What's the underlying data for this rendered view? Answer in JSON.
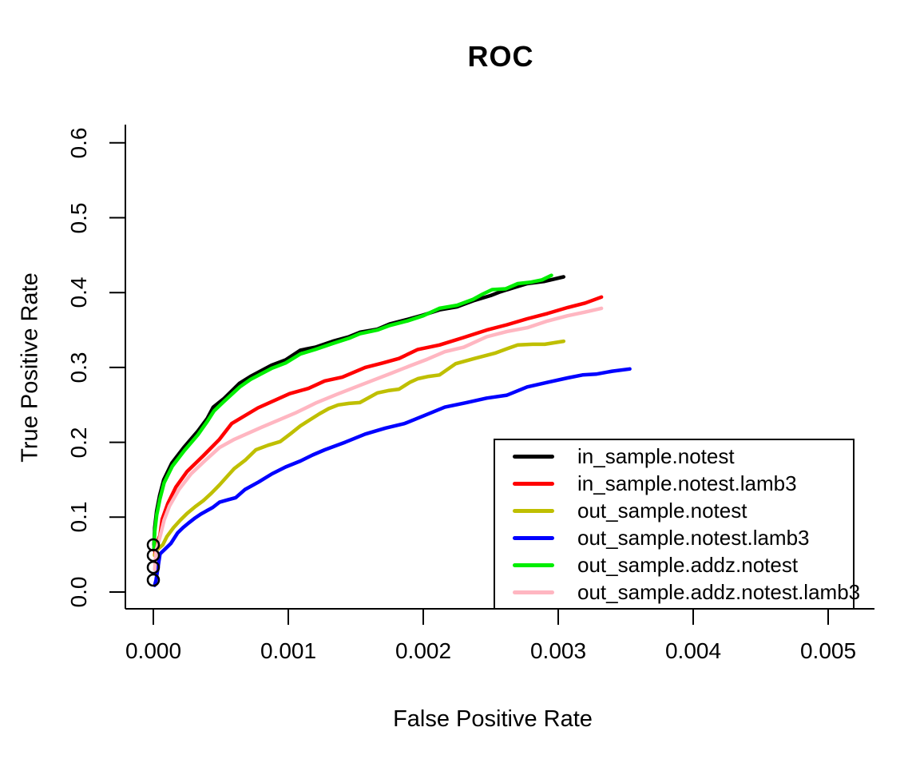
{
  "title": "ROC",
  "xlabel": "False Positive Rate",
  "ylabel": "True Positive Rate",
  "chart_data": {
    "type": "line",
    "title": "ROC",
    "xlabel": "False Positive Rate",
    "ylabel": "True Positive Rate",
    "xlim": [
      0,
      0.005
    ],
    "ylim": [
      0,
      0.6
    ],
    "grid": false,
    "legend_position": "bottom-right",
    "axis_color": "#000000",
    "x_ticks": {
      "values": [
        0,
        0.001,
        0.002,
        0.003,
        0.004,
        0.005
      ],
      "labels": [
        "0.000",
        "0.001",
        "0.002",
        "0.003",
        "0.004",
        "0.005"
      ]
    },
    "y_ticks": {
      "values": [
        0,
        0.1,
        0.2,
        0.3,
        0.4,
        0.5,
        0.6
      ],
      "labels": [
        "0.0",
        "0.1",
        "0.2",
        "0.3",
        "0.4",
        "0.5",
        "0.6"
      ]
    },
    "start_markers": {
      "x": 0,
      "y_values": [
        0.063,
        0.049,
        0.033,
        0.016
      ],
      "style": "open-circle",
      "color": "#000000"
    },
    "series": [
      {
        "name": "in_sample.notest",
        "color": "#000000",
        "points": [
          [
            5e-06,
            0.063
          ],
          [
            1e-05,
            0.086
          ],
          [
            2.4e-05,
            0.108
          ],
          [
            4.7e-05,
            0.129
          ],
          [
            7.7e-05,
            0.15
          ],
          [
            0.000136,
            0.172
          ],
          [
            0.000225,
            0.193
          ],
          [
            0.00033,
            0.215
          ],
          [
            0.0004,
            0.232
          ],
          [
            0.000444,
            0.247
          ],
          [
            0.00052,
            0.258
          ],
          [
            0.000639,
            0.279
          ],
          [
            0.00072,
            0.288
          ],
          [
            0.000876,
            0.303
          ],
          [
            0.00098,
            0.31
          ],
          [
            0.00109,
            0.323
          ],
          [
            0.0012,
            0.327
          ],
          [
            0.00133,
            0.335
          ],
          [
            0.00145,
            0.341
          ],
          [
            0.00153,
            0.347
          ],
          [
            0.00166,
            0.351
          ],
          [
            0.00175,
            0.358
          ],
          [
            0.00188,
            0.364
          ],
          [
            0.002,
            0.37
          ],
          [
            0.00212,
            0.377
          ],
          [
            0.00225,
            0.381
          ],
          [
            0.00237,
            0.389
          ],
          [
            0.0025,
            0.396
          ],
          [
            0.00257,
            0.401
          ],
          [
            0.00268,
            0.407
          ],
          [
            0.00277,
            0.412
          ],
          [
            0.0029,
            0.415
          ],
          [
            0.00304,
            0.421
          ]
        ]
      },
      {
        "name": "in_sample.notest.lamb3",
        "color": "#FF0000",
        "points": [
          [
            1e-05,
            0.049
          ],
          [
            2e-05,
            0.062
          ],
          [
            5e-05,
            0.076
          ],
          [
            6.5e-05,
            0.097
          ],
          [
            0.000107,
            0.118
          ],
          [
            0.000166,
            0.14
          ],
          [
            0.00025,
            0.161
          ],
          [
            0.00037,
            0.182
          ],
          [
            0.00049,
            0.204
          ],
          [
            0.00058,
            0.225
          ],
          [
            0.000775,
            0.246
          ],
          [
            0.00101,
            0.265
          ],
          [
            0.00115,
            0.272
          ],
          [
            0.00127,
            0.282
          ],
          [
            0.0014,
            0.287
          ],
          [
            0.00157,
            0.3
          ],
          [
            0.0017,
            0.306
          ],
          [
            0.00182,
            0.312
          ],
          [
            0.00196,
            0.324
          ],
          [
            0.00212,
            0.33
          ],
          [
            0.0023,
            0.34
          ],
          [
            0.00247,
            0.35
          ],
          [
            0.00262,
            0.357
          ],
          [
            0.00277,
            0.365
          ],
          [
            0.00292,
            0.372
          ],
          [
            0.00307,
            0.38
          ],
          [
            0.0032,
            0.386
          ],
          [
            0.00332,
            0.394
          ]
        ]
      },
      {
        "name": "out_sample.notest",
        "color": "#BFBF00",
        "points": [
          [
            1e-05,
            0.049
          ],
          [
            3e-05,
            0.057
          ],
          [
            7e-05,
            0.063
          ],
          [
            0.0001,
            0.074
          ],
          [
            0.00015,
            0.086
          ],
          [
            0.0002,
            0.096
          ],
          [
            0.00025,
            0.105
          ],
          [
            0.00031,
            0.114
          ],
          [
            0.00037,
            0.122
          ],
          [
            0.00043,
            0.132
          ],
          [
            0.00049,
            0.143
          ],
          [
            0.00055,
            0.155
          ],
          [
            0.0006,
            0.165
          ],
          [
            0.00068,
            0.176
          ],
          [
            0.00076,
            0.19
          ],
          [
            0.00085,
            0.196
          ],
          [
            0.00094,
            0.201
          ],
          [
            0.00102,
            0.212
          ],
          [
            0.00109,
            0.222
          ],
          [
            0.00116,
            0.23
          ],
          [
            0.00123,
            0.238
          ],
          [
            0.0013,
            0.245
          ],
          [
            0.00137,
            0.25
          ],
          [
            0.00145,
            0.252
          ],
          [
            0.00153,
            0.253
          ],
          [
            0.0016,
            0.26
          ],
          [
            0.00166,
            0.266
          ],
          [
            0.00174,
            0.269
          ],
          [
            0.00182,
            0.271
          ],
          [
            0.0019,
            0.28
          ],
          [
            0.00196,
            0.285
          ],
          [
            0.00204,
            0.288
          ],
          [
            0.00212,
            0.29
          ],
          [
            0.00224,
            0.305
          ],
          [
            0.00238,
            0.312
          ],
          [
            0.00253,
            0.319
          ],
          [
            0.00262,
            0.325
          ],
          [
            0.0027,
            0.33
          ],
          [
            0.00281,
            0.331
          ],
          [
            0.0029,
            0.331
          ],
          [
            0.00297,
            0.333
          ],
          [
            0.00304,
            0.335
          ]
        ]
      },
      {
        "name": "out_sample.notest.lamb3",
        "color": "#0000FF",
        "points": [
          [
            1e-05,
            0.009
          ],
          [
            2e-05,
            0.016
          ],
          [
            4e-05,
            0.04
          ],
          [
            5e-05,
            0.051
          ],
          [
            9e-05,
            0.058
          ],
          [
            0.00013,
            0.065
          ],
          [
            0.00018,
            0.079
          ],
          [
            0.00022,
            0.086
          ],
          [
            0.00026,
            0.092
          ],
          [
            0.00031,
            0.099
          ],
          [
            0.00035,
            0.104
          ],
          [
            0.0004,
            0.109
          ],
          [
            0.00044,
            0.113
          ],
          [
            0.00049,
            0.12
          ],
          [
            0.00055,
            0.123
          ],
          [
            0.00061,
            0.126
          ],
          [
            0.00068,
            0.137
          ],
          [
            0.00078,
            0.147
          ],
          [
            0.00088,
            0.158
          ],
          [
            0.00098,
            0.167
          ],
          [
            0.00109,
            0.175
          ],
          [
            0.00118,
            0.183
          ],
          [
            0.00127,
            0.19
          ],
          [
            0.00142,
            0.2
          ],
          [
            0.00157,
            0.211
          ],
          [
            0.00172,
            0.219
          ],
          [
            0.00186,
            0.225
          ],
          [
            0.00201,
            0.236
          ],
          [
            0.00216,
            0.247
          ],
          [
            0.00232,
            0.253
          ],
          [
            0.00247,
            0.259
          ],
          [
            0.00262,
            0.263
          ],
          [
            0.00277,
            0.274
          ],
          [
            0.00292,
            0.28
          ],
          [
            0.00307,
            0.286
          ],
          [
            0.00318,
            0.29
          ],
          [
            0.00328,
            0.291
          ],
          [
            0.0034,
            0.295
          ],
          [
            0.00353,
            0.298
          ]
        ]
      },
      {
        "name": "out_sample.addz.notest",
        "color": "#00EE00",
        "points": [
          [
            5e-06,
            0.058
          ],
          [
            1e-05,
            0.08
          ],
          [
            2.5e-05,
            0.103
          ],
          [
            5e-05,
            0.125
          ],
          [
            8e-05,
            0.146
          ],
          [
            0.00014,
            0.168
          ],
          [
            0.00023,
            0.189
          ],
          [
            0.00033,
            0.21
          ],
          [
            0.0004,
            0.228
          ],
          [
            0.00045,
            0.242
          ],
          [
            0.00052,
            0.254
          ],
          [
            0.00064,
            0.274
          ],
          [
            0.00072,
            0.284
          ],
          [
            0.00088,
            0.299
          ],
          [
            0.00098,
            0.306
          ],
          [
            0.00109,
            0.318
          ],
          [
            0.0012,
            0.324
          ],
          [
            0.00133,
            0.332
          ],
          [
            0.00145,
            0.339
          ],
          [
            0.00153,
            0.345
          ],
          [
            0.00166,
            0.35
          ],
          [
            0.00175,
            0.356
          ],
          [
            0.00188,
            0.362
          ],
          [
            0.002,
            0.369
          ],
          [
            0.00212,
            0.379
          ],
          [
            0.00225,
            0.383
          ],
          [
            0.00237,
            0.391
          ],
          [
            0.00244,
            0.398
          ],
          [
            0.00251,
            0.404
          ],
          [
            0.00261,
            0.405
          ],
          [
            0.0027,
            0.412
          ],
          [
            0.0028,
            0.414
          ],
          [
            0.00288,
            0.417
          ],
          [
            0.00295,
            0.423
          ]
        ]
      },
      {
        "name": "out_sample.addz.notest.lamb3",
        "color": "#FFB6C1",
        "points": [
          [
            1e-05,
            0.03
          ],
          [
            2e-05,
            0.055
          ],
          [
            5e-05,
            0.074
          ],
          [
            8e-05,
            0.096
          ],
          [
            0.00012,
            0.115
          ],
          [
            0.00019,
            0.137
          ],
          [
            0.00028,
            0.158
          ],
          [
            0.00038,
            0.175
          ],
          [
            0.00049,
            0.193
          ],
          [
            0.0006,
            0.204
          ],
          [
            0.0008,
            0.22
          ],
          [
            0.00105,
            0.239
          ],
          [
            0.00121,
            0.253
          ],
          [
            0.00136,
            0.264
          ],
          [
            0.0015,
            0.274
          ],
          [
            0.00163,
            0.283
          ],
          [
            0.00176,
            0.292
          ],
          [
            0.0019,
            0.302
          ],
          [
            0.00203,
            0.311
          ],
          [
            0.00216,
            0.321
          ],
          [
            0.0023,
            0.327
          ],
          [
            0.00247,
            0.341
          ],
          [
            0.00262,
            0.348
          ],
          [
            0.00277,
            0.353
          ],
          [
            0.00292,
            0.362
          ],
          [
            0.00307,
            0.369
          ],
          [
            0.0032,
            0.374
          ],
          [
            0.00332,
            0.379
          ]
        ]
      }
    ]
  },
  "legend": {
    "items": [
      {
        "label": "in_sample.notest",
        "color": "#000000"
      },
      {
        "label": "in_sample.notest.lamb3",
        "color": "#FF0000"
      },
      {
        "label": "out_sample.notest",
        "color": "#BFBF00"
      },
      {
        "label": "out_sample.notest.lamb3",
        "color": "#0000FF"
      },
      {
        "label": "out_sample.addz.notest",
        "color": "#00EE00"
      },
      {
        "label": "out_sample.addz.notest.lamb3",
        "color": "#FFB6C1"
      }
    ]
  }
}
